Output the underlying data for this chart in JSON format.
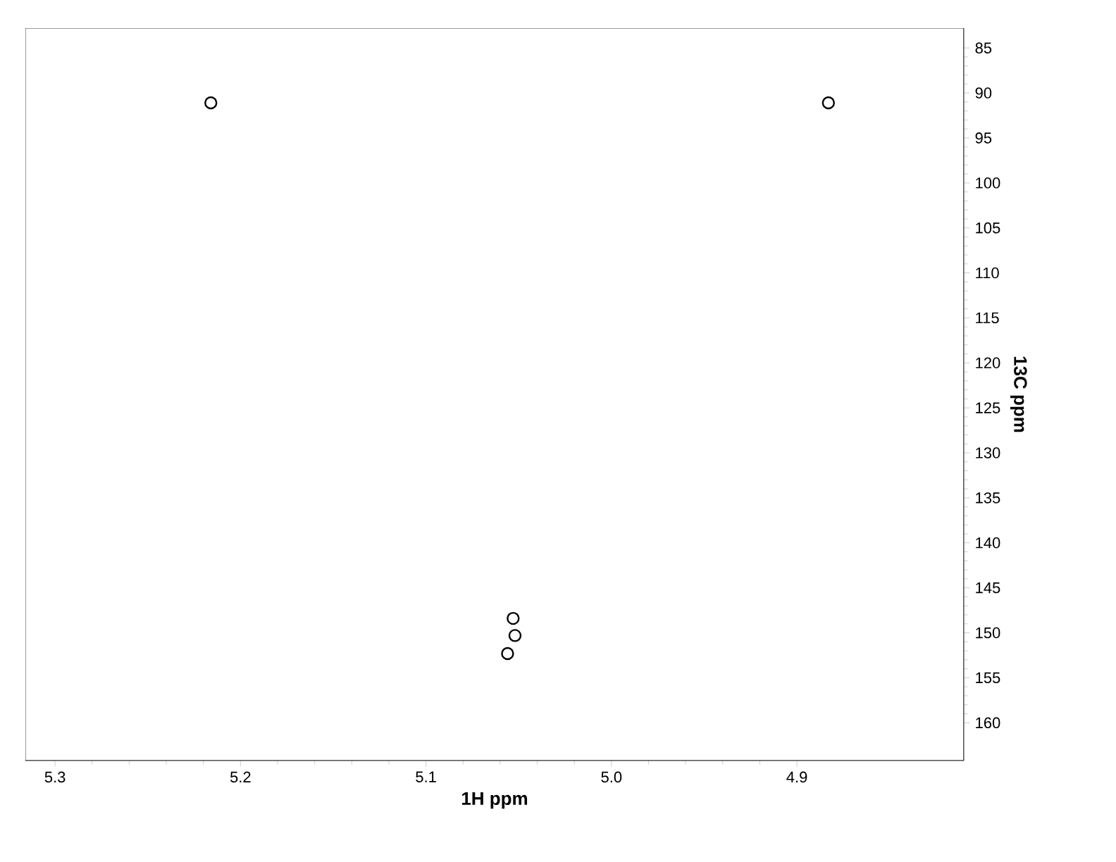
{
  "chart_data": {
    "type": "scatter",
    "xlabel": "1H ppm",
    "ylabel": "13C ppm",
    "x": [
      5.216,
      4.883,
      5.052,
      5.053,
      5.056
    ],
    "values": [
      91.1,
      91.1,
      150.3,
      148.4,
      152.3
    ],
    "color": "#000000",
    "marker": "circle",
    "xlim": [
      5.316,
      4.81
    ],
    "ylim": [
      164.2,
      82.8
    ],
    "xticks": [
      5.3,
      5.2,
      5.1,
      {
        "value": 5.0,
        "label": "5.0"
      },
      4.9
    ],
    "yticks": [
      85,
      90,
      95,
      100,
      105,
      110,
      115,
      120,
      125,
      130,
      135,
      140,
      145,
      150,
      155,
      160
    ],
    "grid": false
  }
}
